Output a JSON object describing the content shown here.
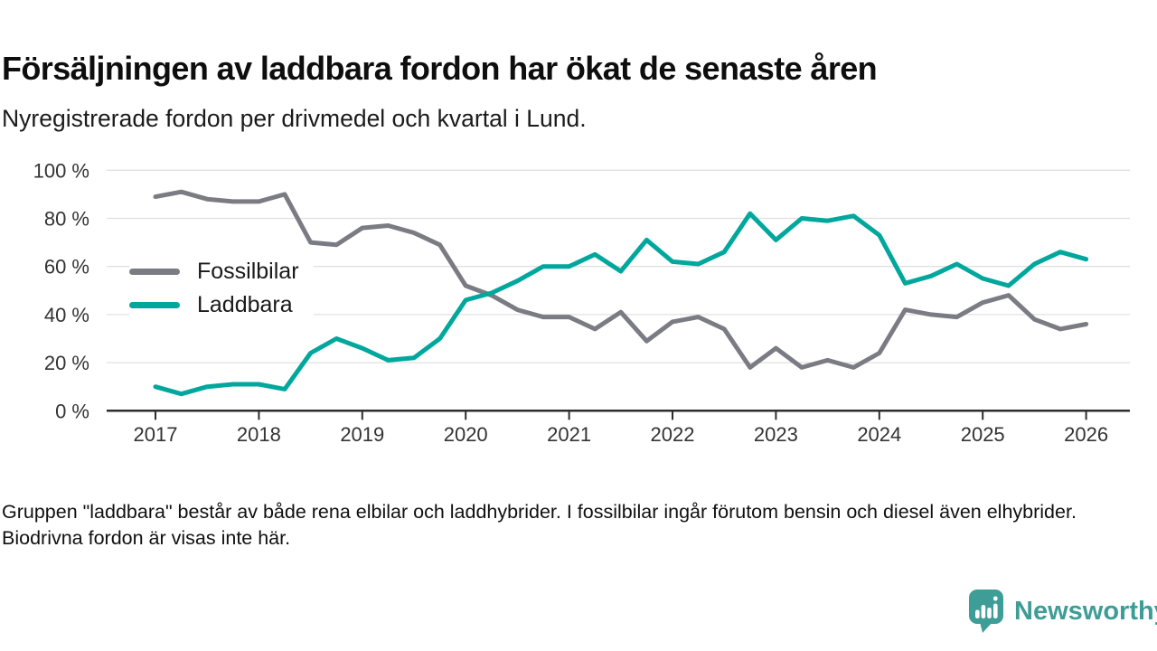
{
  "header": {
    "title": "Försäljningen av laddbara fordon har ökat de senaste åren",
    "subtitle": "Nyregistrerade fordon per drivmedel och kvartal i Lund."
  },
  "chart_data": {
    "type": "line",
    "title": "Nyregistrerade fordon per drivmedel och kvartal i Lund",
    "x_frequency": "quarterly",
    "x_start": "2017-Q1",
    "x_end": "2026-Q1",
    "x_tick_labels": [
      "2017",
      "2018",
      "2019",
      "2020",
      "2021",
      "2022",
      "2023",
      "2024",
      "2025",
      "2026"
    ],
    "y_ticks": [
      0,
      20,
      40,
      60,
      80,
      100
    ],
    "y_tick_labels": [
      "0 %",
      "20 %",
      "40 %",
      "60 %",
      "80 %",
      "100 %"
    ],
    "ylim": [
      0,
      100
    ],
    "grid": "horizontal",
    "legend_position": "inside-left",
    "series": [
      {
        "name": "Fossilbilar",
        "color": "#7b7b83",
        "values": [
          89,
          91,
          88,
          87,
          87,
          90,
          70,
          69,
          76,
          77,
          74,
          69,
          52,
          48,
          42,
          39,
          39,
          34,
          41,
          29,
          37,
          39,
          34,
          18,
          26,
          18,
          21,
          18,
          24,
          42,
          40,
          39,
          45,
          48,
          38,
          34,
          36
        ]
      },
      {
        "name": "Laddbara",
        "color": "#00a79c",
        "values": [
          10,
          7,
          10,
          11,
          11,
          9,
          24,
          30,
          26,
          21,
          22,
          30,
          46,
          49,
          54,
          60,
          60,
          65,
          58,
          71,
          62,
          61,
          66,
          82,
          71,
          80,
          79,
          81,
          73,
          53,
          56,
          61,
          55,
          52,
          61,
          66,
          63
        ]
      }
    ]
  },
  "footer": {
    "note": "Gruppen \"laddbara\" består av både rena elbilar och laddhybrider. I fossilbilar ingår förutom bensin och diesel även elhybrider. Biodrivna fordon är visas inte här."
  },
  "branding": {
    "name": "Newsworthy",
    "color": "#3e9d96",
    "icon": "newsworthy-speech-bubble-bar-chart-icon"
  }
}
